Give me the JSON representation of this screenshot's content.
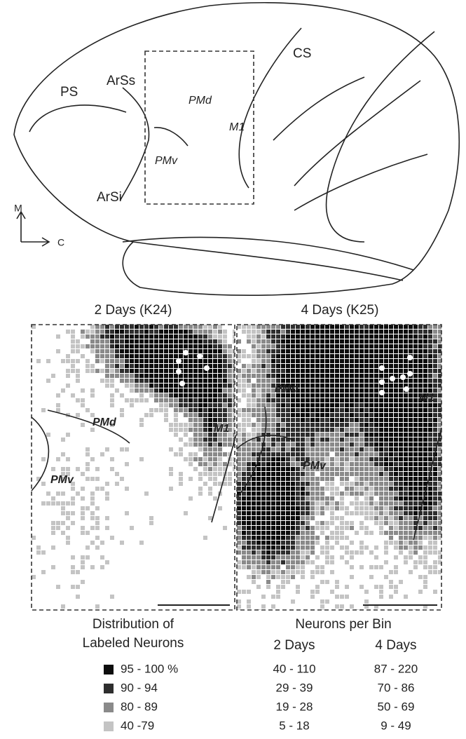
{
  "brain": {
    "labels": {
      "ps": "PS",
      "arss": "ArSs",
      "arsi": "ArSi",
      "pmd": "PMd",
      "pmv": "PMv",
      "m1": "M1",
      "cs": "CS"
    },
    "axes": {
      "m": "M",
      "c": "C"
    }
  },
  "panels": [
    {
      "title": "2 Days (K24)",
      "pmd": "PMd",
      "m1": "M1",
      "pmv": "PMv"
    },
    {
      "title": "4 Days (K25)",
      "pmd": "PMd",
      "m1": "M1",
      "pmv": "PMv"
    }
  ],
  "legend": {
    "title_left_1": "Distribution of",
    "title_left_2": "Labeled Neurons",
    "title_right": "Neurons per Bin",
    "columns": [
      "2 Days",
      "4 Days"
    ],
    "rows": [
      {
        "range": "95 - 100 %",
        "days2": "40 - 110",
        "days4": "87 - 220",
        "color": "#0d0d0d"
      },
      {
        "range": "90 - 94",
        "days2": "29 - 39",
        "days4": "70 - 86",
        "color": "#2e2e2e"
      },
      {
        "range": "80 - 89",
        "days2": "19 - 28",
        "days4": "50 - 69",
        "color": "#8a8a8a"
      },
      {
        "range": "40 -79",
        "days2": "5 - 18",
        "days4": "9 - 49",
        "color": "#c4c4c4"
      }
    ]
  }
}
